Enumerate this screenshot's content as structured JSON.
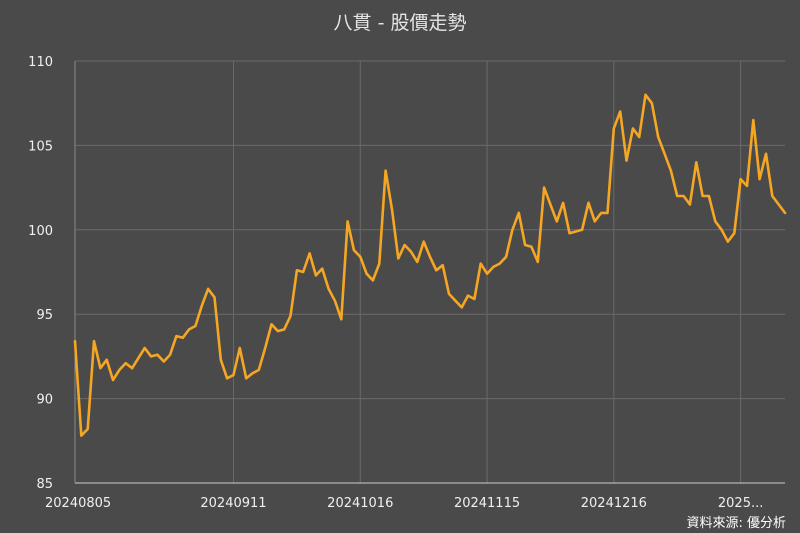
{
  "chart_data": {
    "type": "line",
    "title": "八貫 - 股價走勢",
    "source": "資料來源: 優分析",
    "xlabel": "",
    "ylabel": "",
    "ylim": [
      85,
      110
    ],
    "yticks": [
      85,
      90,
      95,
      100,
      105,
      110
    ],
    "xtick_labels": [
      "20240805",
      "20240911",
      "20241016",
      "20241115",
      "20241216",
      "2025..."
    ],
    "xtick_indices": [
      0,
      25,
      45,
      65,
      85,
      105
    ],
    "grid": true,
    "colors": {
      "background": "#4a4a4a",
      "line": "#f5a623",
      "grid": "#6a6a6a"
    },
    "series": [
      {
        "values": [
          93.4,
          87.8,
          88.2,
          93.4,
          91.8,
          92.3,
          91.1,
          91.7,
          92.1,
          91.8,
          92.4,
          93.0,
          92.5,
          92.6,
          92.2,
          92.6,
          93.7,
          93.6,
          94.1,
          94.3,
          95.5,
          96.5,
          96.0,
          92.3,
          91.2,
          91.4,
          93.0,
          91.2,
          91.5,
          91.7,
          93.0,
          94.4,
          94.0,
          94.1,
          94.9,
          97.6,
          97.5,
          98.6,
          97.3,
          97.7,
          96.5,
          95.8,
          94.7,
          100.5,
          98.8,
          98.4,
          97.4,
          97.0,
          98.0,
          103.5,
          101.2,
          98.3,
          99.1,
          98.7,
          98.1,
          99.3,
          98.4,
          97.6,
          97.9,
          96.2,
          95.8,
          95.4,
          96.1,
          95.9,
          98.0,
          97.4,
          97.8,
          98.0,
          98.4,
          100.0,
          101.0,
          99.1,
          99.0,
          98.1,
          102.5,
          101.5,
          100.5,
          101.6,
          99.8,
          99.9,
          100.0,
          101.6,
          100.5,
          101.0,
          101.0,
          106.0,
          107.0,
          104.1,
          106.0,
          105.5,
          108.0,
          107.5,
          105.5,
          104.5,
          103.5,
          102.0,
          102.0,
          101.5,
          104.0,
          102.0,
          102.0,
          100.5,
          100.0,
          99.3,
          99.8,
          103.0,
          102.6,
          106.5,
          103.0,
          104.5,
          102.0,
          101.5,
          101.0
        ]
      }
    ]
  }
}
